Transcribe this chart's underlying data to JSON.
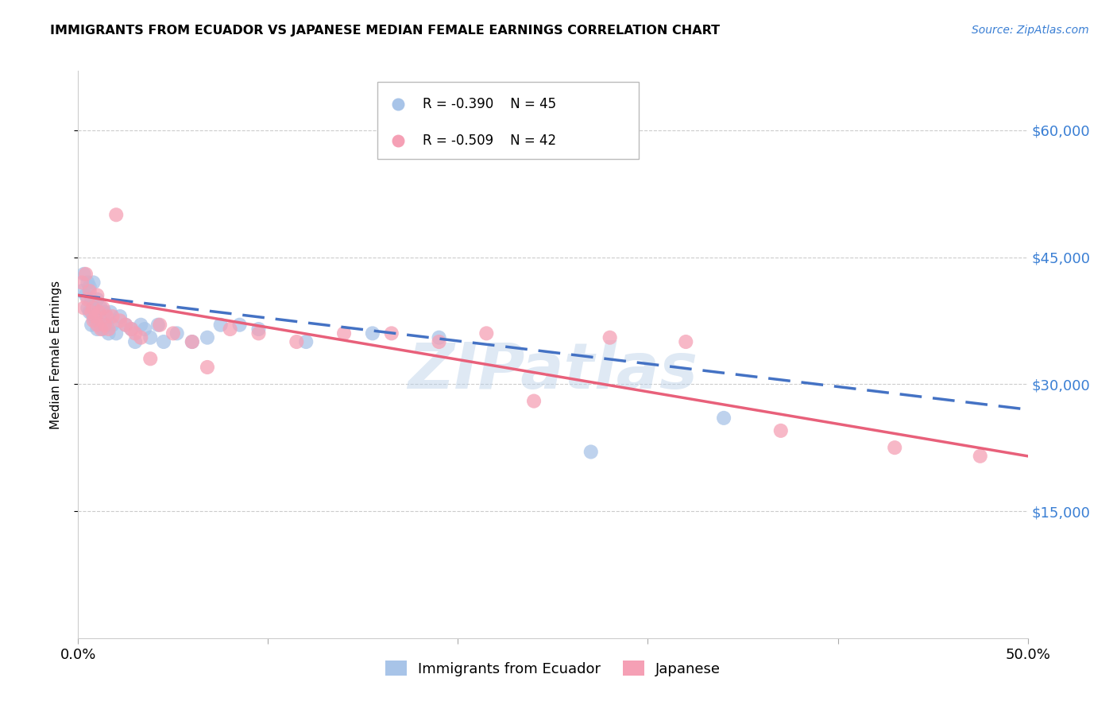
{
  "title": "IMMIGRANTS FROM ECUADOR VS JAPANESE MEDIAN FEMALE EARNINGS CORRELATION CHART",
  "source": "Source: ZipAtlas.com",
  "ylabel": "Median Female Earnings",
  "watermark": "ZIPatlas",
  "legend_labels": [
    "Immigrants from Ecuador",
    "Japanese"
  ],
  "ecuador_color": "#a8c4e8",
  "japanese_color": "#f5a0b5",
  "ecuador_line_color": "#4472c4",
  "japanese_line_color": "#e8607a",
  "ytick_labels": [
    "$15,000",
    "$30,000",
    "$45,000",
    "$60,000"
  ],
  "ytick_values": [
    15000,
    30000,
    45000,
    60000
  ],
  "ylim": [
    0,
    67000
  ],
  "xlim": [
    0,
    0.5
  ],
  "xtick_values": [
    0.0,
    0.1,
    0.2,
    0.3,
    0.4,
    0.5
  ],
  "xtick_labels": [
    "0.0%",
    "",
    "",
    "",
    "",
    "50.0%"
  ],
  "ecuador_x": [
    0.002,
    0.003,
    0.004,
    0.005,
    0.005,
    0.006,
    0.006,
    0.007,
    0.007,
    0.008,
    0.008,
    0.009,
    0.009,
    0.01,
    0.01,
    0.011,
    0.012,
    0.013,
    0.013,
    0.014,
    0.015,
    0.016,
    0.017,
    0.018,
    0.02,
    0.022,
    0.025,
    0.028,
    0.03,
    0.033,
    0.035,
    0.038,
    0.042,
    0.045,
    0.052,
    0.06,
    0.068,
    0.075,
    0.085,
    0.095,
    0.12,
    0.155,
    0.19,
    0.27,
    0.34
  ],
  "ecuador_y": [
    41000,
    43000,
    40500,
    42000,
    39000,
    41500,
    38500,
    40000,
    37000,
    42000,
    38000,
    39500,
    37500,
    40000,
    36500,
    38000,
    39000,
    37000,
    36500,
    38500,
    37000,
    36000,
    38500,
    37000,
    36000,
    38000,
    37000,
    36500,
    35000,
    37000,
    36500,
    35500,
    37000,
    35000,
    36000,
    35000,
    35500,
    37000,
    37000,
    36500,
    35000,
    36000,
    35500,
    22000,
    26000
  ],
  "japanese_x": [
    0.002,
    0.003,
    0.004,
    0.005,
    0.006,
    0.007,
    0.008,
    0.008,
    0.009,
    0.01,
    0.01,
    0.011,
    0.012,
    0.013,
    0.014,
    0.015,
    0.016,
    0.018,
    0.02,
    0.022,
    0.025,
    0.028,
    0.03,
    0.033,
    0.038,
    0.043,
    0.05,
    0.06,
    0.068,
    0.08,
    0.095,
    0.115,
    0.14,
    0.165,
    0.19,
    0.215,
    0.24,
    0.28,
    0.32,
    0.37,
    0.43,
    0.475
  ],
  "japanese_y": [
    42000,
    39000,
    43000,
    40000,
    41000,
    38500,
    39000,
    37500,
    38000,
    40500,
    37000,
    38500,
    36500,
    39000,
    37000,
    38000,
    36500,
    38000,
    50000,
    37500,
    37000,
    36500,
    36000,
    35500,
    33000,
    37000,
    36000,
    35000,
    32000,
    36500,
    36000,
    35000,
    36000,
    36000,
    35000,
    36000,
    28000,
    35500,
    35000,
    24500,
    22500,
    21500
  ],
  "ecuador_r": -0.39,
  "ecuador_n": 45,
  "japanese_r": -0.509,
  "japanese_n": 42,
  "ecuador_line_x0": 0.0,
  "ecuador_line_x1": 0.5,
  "ecuador_line_y0": 40500,
  "ecuador_line_y1": 27000,
  "japanese_line_x0": 0.0,
  "japanese_line_x1": 0.5,
  "japanese_line_y0": 40500,
  "japanese_line_y1": 21500
}
